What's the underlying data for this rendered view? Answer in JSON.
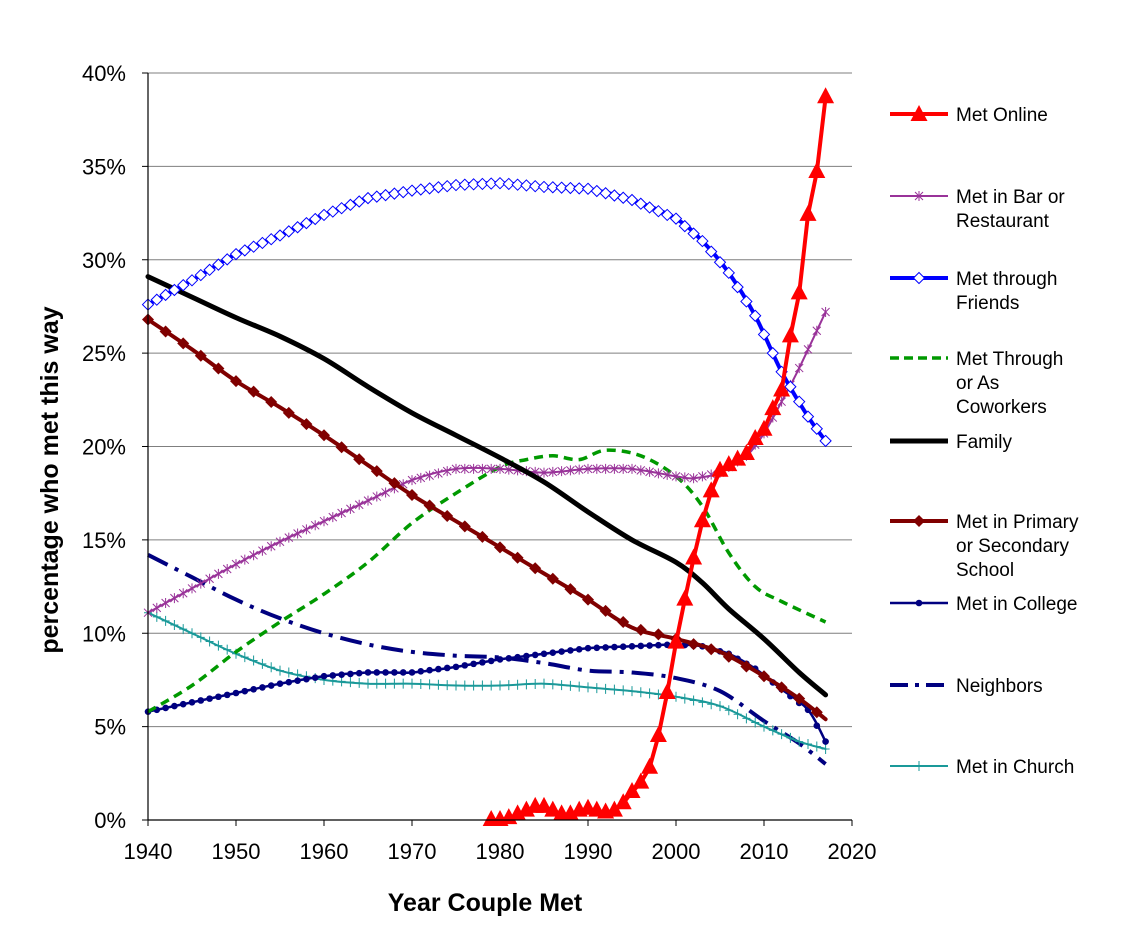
{
  "chart_data": {
    "type": "line",
    "xlabel": "Year Couple Met",
    "ylabel": "percentage who met this way",
    "xlim": [
      1940,
      2020
    ],
    "ylim": [
      0,
      40
    ],
    "x_ticks": [
      "1940",
      "1950",
      "1960",
      "1970",
      "1980",
      "1990",
      "2000",
      "2010",
      "2020"
    ],
    "y_ticks": [
      "0%",
      "5%",
      "10%",
      "15%",
      "20%",
      "25%",
      "30%",
      "35%",
      "40%"
    ],
    "grid": "horizontal",
    "legend_position": "right",
    "series": [
      {
        "name": "Met Online",
        "legend_lines": [
          "Met Online"
        ],
        "color": "#ff0000",
        "line_style": "solid",
        "line_width": 4,
        "marker": "triangle",
        "x": [
          1979,
          1980,
          1981,
          1982,
          1983,
          1984,
          1985,
          1986,
          1987,
          1988,
          1989,
          1990,
          1991,
          1992,
          1993,
          1994,
          1995,
          1996,
          1997,
          1998,
          1999,
          2000,
          2001,
          2002,
          2003,
          2004,
          2005,
          2006,
          2007,
          2008,
          2009,
          2010,
          2011,
          2012,
          2013,
          2014,
          2015,
          2016,
          2017
        ],
        "y": [
          0,
          0,
          0.1,
          0.3,
          0.5,
          0.7,
          0.7,
          0.5,
          0.3,
          0.3,
          0.5,
          0.6,
          0.5,
          0.4,
          0.5,
          0.9,
          1.5,
          2.0,
          2.8,
          4.5,
          6.8,
          9.5,
          11.8,
          14.0,
          16.0,
          17.6,
          18.7,
          19.0,
          19.3,
          19.6,
          20.4,
          20.9,
          22.0,
          23.0,
          25.9,
          28.2,
          32.4,
          34.7,
          38.7
        ]
      },
      {
        "name": "Met in Bar or Restaurant",
        "legend_lines": [
          "Met in Bar or",
          "Restaurant"
        ],
        "color": "#993399",
        "line_style": "solid",
        "line_width": 2,
        "marker": "star",
        "x": [
          1940,
          1945,
          1950,
          1955,
          1960,
          1965,
          1970,
          1975,
          1980,
          1985,
          1990,
          1995,
          2000,
          2002,
          2005,
          2008,
          2010,
          2012,
          2014,
          2017
        ],
        "y": [
          11.1,
          12.4,
          13.7,
          14.9,
          16.0,
          17.1,
          18.2,
          18.8,
          18.8,
          18.6,
          18.8,
          18.8,
          18.4,
          18.3,
          18.6,
          19.5,
          20.7,
          22.4,
          24.2,
          27.2
        ]
      },
      {
        "name": "Met through Friends",
        "legend_lines": [
          "Met through",
          "Friends"
        ],
        "color": "#0000ff",
        "line_style": "solid",
        "line_width": 4,
        "marker": "diamond-open",
        "x": [
          1940,
          1945,
          1950,
          1955,
          1960,
          1965,
          1970,
          1975,
          1980,
          1985,
          1990,
          1995,
          2000,
          2003,
          2006,
          2009,
          2012,
          2015,
          2017
        ],
        "y": [
          27.6,
          28.9,
          30.3,
          31.3,
          32.4,
          33.3,
          33.7,
          34.0,
          34.1,
          33.9,
          33.8,
          33.2,
          32.2,
          31.0,
          29.3,
          27.0,
          24.0,
          21.6,
          20.3
        ]
      },
      {
        "name": "Met Through or As Coworkers",
        "legend_lines": [
          "Met Through",
          "or As",
          "Coworkers"
        ],
        "color": "#009900",
        "line_style": "dashed",
        "line_width": 3.5,
        "marker": "none",
        "x": [
          1940,
          1945,
          1950,
          1955,
          1960,
          1965,
          1970,
          1975,
          1980,
          1983,
          1986,
          1989,
          1992,
          1996,
          2000,
          2003,
          2006,
          2009,
          2012,
          2017
        ],
        "y": [
          5.8,
          7.2,
          9.0,
          10.6,
          12.1,
          13.8,
          15.9,
          17.5,
          18.9,
          19.3,
          19.5,
          19.3,
          19.8,
          19.5,
          18.4,
          16.8,
          14.3,
          12.5,
          11.7,
          10.6
        ]
      },
      {
        "name": "Family",
        "legend_lines": [
          "Family"
        ],
        "color": "#000000",
        "line_style": "solid",
        "line_width": 5,
        "marker": "none",
        "x": [
          1940,
          1945,
          1950,
          1955,
          1960,
          1965,
          1970,
          1975,
          1980,
          1985,
          1990,
          1995,
          2000,
          2003,
          2006,
          2010,
          2014,
          2017
        ],
        "y": [
          29.1,
          28.0,
          26.9,
          25.9,
          24.7,
          23.2,
          21.8,
          20.6,
          19.4,
          18.1,
          16.5,
          15.0,
          13.8,
          12.7,
          11.3,
          9.7,
          7.9,
          6.7
        ]
      },
      {
        "name": "Met in Primary or Secondary School",
        "legend_lines": [
          "Met in Primary",
          "or Secondary",
          "School"
        ],
        "color": "#800000",
        "line_style": "solid",
        "line_width": 4,
        "marker": "diamond",
        "x": [
          1940,
          1945,
          1950,
          1955,
          1960,
          1965,
          1970,
          1975,
          1980,
          1985,
          1990,
          1995,
          2000,
          2005,
          2010,
          2014,
          2017
        ],
        "y": [
          26.8,
          25.2,
          23.5,
          22.1,
          20.6,
          19.0,
          17.4,
          16.0,
          14.6,
          13.2,
          11.8,
          10.3,
          9.7,
          9.0,
          7.7,
          6.5,
          5.4
        ]
      },
      {
        "name": "Met in College",
        "legend_lines": [
          "Met in College"
        ],
        "color": "#000080",
        "line_style": "solid",
        "line_width": 2.5,
        "marker": "circle",
        "x": [
          1940,
          1945,
          1950,
          1955,
          1960,
          1965,
          1970,
          1975,
          1980,
          1985,
          1990,
          1995,
          2000,
          2003,
          2006,
          2009,
          2012,
          2015,
          2017
        ],
        "y": [
          5.8,
          6.3,
          6.8,
          7.3,
          7.7,
          7.9,
          7.9,
          8.2,
          8.6,
          8.9,
          9.2,
          9.3,
          9.4,
          9.3,
          8.9,
          8.1,
          7.0,
          5.9,
          4.2
        ]
      },
      {
        "name": "Neighbors",
        "legend_lines": [
          "Neighbors"
        ],
        "color": "#000080",
        "line_style": "dashdot",
        "line_width": 4,
        "marker": "none",
        "x": [
          1940,
          1945,
          1950,
          1955,
          1960,
          1965,
          1970,
          1975,
          1980,
          1985,
          1990,
          1995,
          2000,
          2005,
          2010,
          2014,
          2017
        ],
        "y": [
          14.2,
          13.0,
          11.8,
          10.8,
          10.0,
          9.4,
          9.0,
          8.8,
          8.7,
          8.4,
          8.0,
          7.9,
          7.6,
          6.9,
          5.3,
          4.1,
          3.0
        ]
      },
      {
        "name": "Met in Church",
        "legend_lines": [
          "Met in Church"
        ],
        "color": "#1a9999",
        "line_style": "solid",
        "line_width": 2,
        "marker": "plus",
        "x": [
          1940,
          1945,
          1950,
          1955,
          1960,
          1965,
          1970,
          1975,
          1980,
          1985,
          1990,
          1995,
          2000,
          2005,
          2010,
          2014,
          2017
        ],
        "y": [
          11.1,
          10.0,
          8.9,
          8.0,
          7.5,
          7.3,
          7.3,
          7.2,
          7.2,
          7.3,
          7.1,
          6.9,
          6.6,
          6.1,
          5.0,
          4.2,
          3.8
        ]
      }
    ]
  }
}
